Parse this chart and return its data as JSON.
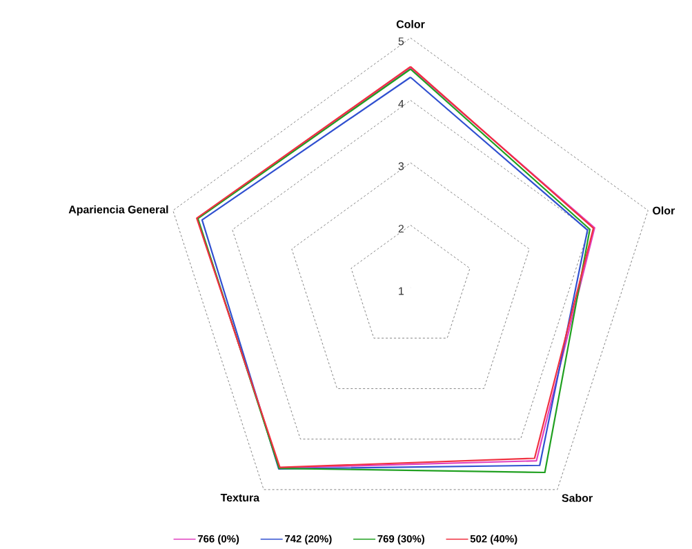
{
  "chart_data": {
    "type": "radar",
    "categories": [
      "Color",
      "Olor",
      "Sabor",
      "Textura",
      "Apariencia General"
    ],
    "series": [
      {
        "name": "766 (0%)",
        "color": "#e040c0",
        "values": [
          4.52,
          4.1,
          4.43,
          4.57,
          4.59
        ]
      },
      {
        "name": "742 (20%)",
        "color": "#3050d0",
        "values": [
          4.37,
          3.98,
          4.52,
          4.59,
          4.51
        ]
      },
      {
        "name": "769 (30%)",
        "color": "#20a020",
        "values": [
          4.5,
          4.02,
          4.66,
          4.58,
          4.58
        ]
      },
      {
        "name": "502 (40%)",
        "color": "#f03040",
        "values": [
          4.54,
          4.08,
          4.38,
          4.56,
          4.6
        ]
      }
    ],
    "ylim": [
      1,
      5
    ],
    "yticks": [
      1,
      2,
      3,
      4,
      5
    ],
    "legend": "bottom",
    "marker": "none",
    "line_style": "solid"
  }
}
